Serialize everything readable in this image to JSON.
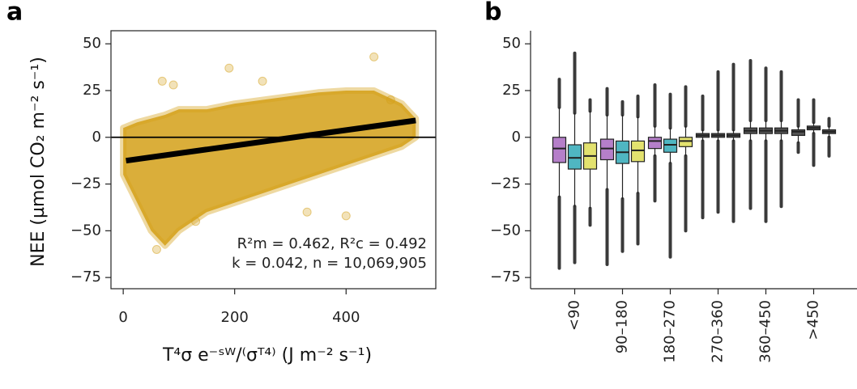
{
  "chart_data": [
    {
      "type": "scatter",
      "panel": "a",
      "y_label": "NEE (µmol CO₂ m⁻² s⁻¹)",
      "x_label": "T⁴σ e⁻ˢᵂ/⁽σᵀ⁴⁾ (J m⁻² s⁻¹)",
      "annotations": [
        "R²m = 0.462, R²c = 0.492",
        "k = 0.042, n = 10,069,905"
      ],
      "color": "#d4a017",
      "envelope": {
        "x": [
          0,
          25,
          50,
          75,
          100,
          150,
          200,
          250,
          300,
          350,
          400,
          450,
          500,
          525
        ],
        "upper": [
          5,
          8,
          10,
          12,
          15,
          15,
          18,
          20,
          22,
          24,
          25,
          25,
          18,
          10
        ],
        "lower": [
          -20,
          -35,
          -50,
          -58,
          -50,
          -40,
          -35,
          -30,
          -25,
          -20,
          -15,
          -10,
          -5,
          0
        ]
      },
      "x": [
        70,
        90,
        190,
        250,
        450,
        330,
        400,
        130,
        60,
        480
      ],
      "y": [
        30,
        28,
        37,
        30,
        43,
        -40,
        -42,
        -45,
        -60,
        20
      ],
      "fit": {
        "x": [
          5,
          525
        ],
        "y": [
          -12.5,
          9
        ]
      },
      "hline": 0,
      "xlim": [
        -22,
        561
      ],
      "xticks": [
        0,
        200,
        400
      ],
      "ylim": [
        -81,
        57
      ],
      "yticks": [
        50,
        25,
        0,
        {
          "value": -25,
          "label": "−25"
        },
        {
          "value": -50,
          "label": "−50"
        },
        {
          "value": -75,
          "label": "−75"
        }
      ]
    },
    {
      "type": "box",
      "panel": "b",
      "categories": [
        "<90",
        "90–180",
        "180–270",
        "270–360",
        "360–450",
        ">450"
      ],
      "series": [
        {
          "colors": [
            "#b57fc9",
            "#b57fc9",
            "#b57fc9",
            "#555555",
            "#555555",
            "#555555"
          ],
          "min": [
            -70,
            -68,
            -34,
            -43,
            -38,
            -8
          ],
          "whislo": [
            -32,
            -28,
            -10,
            -2,
            -2,
            -3
          ],
          "q1": [
            -13.5,
            -12,
            -6,
            0,
            2,
            1
          ],
          "median": [
            -6,
            -6,
            -2,
            1,
            3.5,
            3
          ],
          "q3": [
            0,
            -1,
            0,
            2,
            5,
            4
          ],
          "whishi": [
            16,
            12,
            6,
            4,
            9,
            6
          ],
          "max": [
            31,
            26,
            28,
            22,
            41,
            20
          ]
        },
        {
          "colors": [
            "#4fb6c2",
            "#4fb6c2",
            "#4fb6c2",
            "#555555",
            "#555555",
            "#555555"
          ],
          "min": [
            -67,
            -61,
            -64,
            -40,
            -45,
            -15
          ],
          "whislo": [
            -37,
            -33,
            -14,
            -2,
            -2,
            2
          ],
          "q1": [
            -17,
            -14,
            -8,
            0,
            2,
            4
          ],
          "median": [
            -11,
            -8,
            -4,
            1,
            3.5,
            5
          ],
          "q3": [
            -4,
            -2,
            -1,
            2,
            5,
            6
          ],
          "whishi": [
            13,
            12,
            5,
            4,
            9,
            8
          ],
          "max": [
            45,
            19,
            23,
            35,
            37,
            20
          ]
        },
        {
          "colors": [
            "#e3e26f",
            "#e3e26f",
            "#e3e26f",
            "#555555",
            "#555555",
            "#555555"
          ],
          "min": [
            -47,
            -57,
            -50,
            -45,
            -37,
            -10
          ],
          "whislo": [
            -38,
            -30,
            -10,
            -2,
            -2,
            0
          ],
          "q1": [
            -17,
            -13,
            -5,
            0,
            2,
            2
          ],
          "median": [
            -10,
            -7,
            -2,
            1,
            3.5,
            3
          ],
          "q3": [
            -3,
            -2,
            0,
            2,
            5,
            4
          ],
          "whishi": [
            14,
            11,
            6,
            4,
            9,
            6
          ],
          "max": [
            20,
            22,
            27,
            39,
            35,
            10
          ]
        }
      ],
      "ylim": [
        -81,
        57
      ],
      "yticks": [
        50,
        25,
        0,
        {
          "value": -25,
          "label": "−25"
        },
        {
          "value": -50,
          "label": "−50"
        },
        {
          "value": -75,
          "label": "−75"
        }
      ]
    }
  ]
}
